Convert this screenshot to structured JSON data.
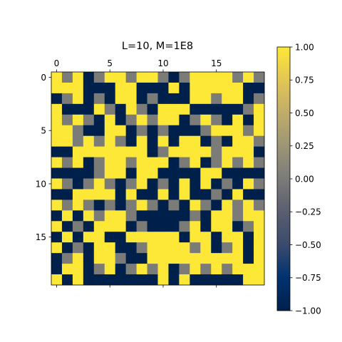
{
  "chart_data": {
    "type": "heatmap",
    "title": "L=10, M=1E8",
    "xlabel": "",
    "ylabel": "",
    "x_ticks": [
      0,
      5,
      10,
      15
    ],
    "y_ticks": [
      0,
      5,
      10,
      15
    ],
    "colormap": "cividis",
    "colorbar": {
      "range": [
        -1.0,
        1.0
      ],
      "ticks": [
        1.0,
        0.75,
        0.5,
        0.25,
        0.0,
        -0.25,
        -0.5,
        -0.75,
        -1.0
      ],
      "tick_labels": [
        "1.00",
        "0.75",
        "0.50",
        "0.25",
        "0.00",
        "−0.25",
        "−0.50",
        "−0.75",
        "−1.00"
      ]
    },
    "matrix": [
      [
        1,
        0,
        1,
        -1,
        0,
        1,
        1,
        0,
        1,
        1,
        0,
        -1,
        0,
        1,
        1,
        1,
        1,
        0,
        1,
        0
      ],
      [
        1,
        1,
        1,
        -1,
        -1,
        -1,
        1,
        1,
        -1,
        -1,
        -1,
        1,
        -1,
        1,
        1,
        1,
        1,
        1,
        -1,
        -1
      ],
      [
        -1,
        0,
        1,
        -1,
        0,
        -1,
        1,
        1,
        -1,
        0,
        -1,
        -1,
        -1,
        1,
        1,
        0,
        1,
        1,
        -1,
        0
      ],
      [
        1,
        -1,
        -1,
        -1,
        1,
        0,
        -1,
        1,
        0,
        -1,
        1,
        1,
        1,
        -1,
        -1,
        -1,
        -1,
        -1,
        0,
        1
      ],
      [
        1,
        0,
        1,
        0,
        -1,
        1,
        -1,
        0,
        1,
        0,
        1,
        1,
        -1,
        0,
        1,
        0,
        -1,
        1,
        -1,
        1
      ],
      [
        1,
        1,
        0,
        -1,
        -1,
        1,
        1,
        -1,
        0,
        -1,
        0,
        -1,
        -1,
        -1,
        0,
        1,
        1,
        1,
        0,
        1
      ],
      [
        1,
        1,
        0,
        1,
        0,
        1,
        0,
        -1,
        1,
        -1,
        1,
        -1,
        1,
        1,
        -1,
        0,
        -1,
        1,
        1,
        0
      ],
      [
        -1,
        -1,
        1,
        1,
        1,
        1,
        1,
        1,
        1,
        -1,
        0,
        1,
        1,
        1,
        1,
        0,
        1,
        1,
        1,
        -1
      ],
      [
        1,
        0,
        1,
        -1,
        0,
        1,
        1,
        0,
        1,
        1,
        1,
        -1,
        0,
        1,
        -1,
        0,
        1,
        0,
        1,
        0
      ],
      [
        -1,
        -1,
        -1,
        -1,
        0,
        1,
        1,
        -1,
        1,
        1,
        -1,
        -1,
        -1,
        -1,
        1,
        1,
        -1,
        -1,
        -1,
        -1
      ],
      [
        1,
        0,
        -1,
        0,
        1,
        0,
        -1,
        0,
        1,
        -1,
        0,
        -1,
        1,
        -1,
        1,
        -1,
        0,
        -1,
        1,
        0
      ],
      [
        -1,
        -1,
        1,
        1,
        1,
        1,
        -1,
        1,
        -1,
        -1,
        1,
        -1,
        1,
        -1,
        -1,
        0,
        -1,
        1,
        -1,
        -1
      ],
      [
        1,
        0,
        1,
        0,
        -1,
        0,
        -1,
        0,
        1,
        0,
        -1,
        0,
        -1,
        1,
        0,
        -1,
        1,
        0,
        1,
        0
      ],
      [
        -1,
        1,
        -1,
        1,
        0,
        1,
        1,
        0,
        -1,
        -1,
        -1,
        -1,
        -1,
        0,
        -1,
        1,
        1,
        0,
        1,
        1
      ],
      [
        1,
        -1,
        0,
        -1,
        1,
        1,
        1,
        -1,
        0,
        -1,
        -1,
        -1,
        0,
        1,
        -1,
        1,
        1,
        -1,
        0,
        1
      ],
      [
        -1,
        1,
        -1,
        1,
        1,
        -1,
        -1,
        1,
        1,
        1,
        1,
        1,
        -1,
        1,
        1,
        -1,
        1,
        1,
        -1,
        1
      ],
      [
        1,
        -1,
        0,
        -1,
        1,
        1,
        -1,
        -1,
        0,
        1,
        1,
        1,
        1,
        0,
        1,
        -1,
        0,
        1,
        -1,
        1
      ],
      [
        -1,
        0,
        1,
        -1,
        1,
        1,
        0,
        -1,
        -1,
        1,
        1,
        1,
        1,
        1,
        1,
        1,
        1,
        1,
        -1,
        1
      ],
      [
        -1,
        1,
        1,
        -1,
        0,
        1,
        -1,
        0,
        1,
        0,
        1,
        -1,
        0,
        1,
        0,
        1,
        0,
        1,
        1,
        1
      ],
      [
        1,
        -1,
        1,
        -1,
        -1,
        -1,
        -1,
        -1,
        -1,
        -1,
        1,
        -1,
        1,
        -1,
        -1,
        -1,
        -1,
        -1,
        1,
        1
      ]
    ]
  }
}
